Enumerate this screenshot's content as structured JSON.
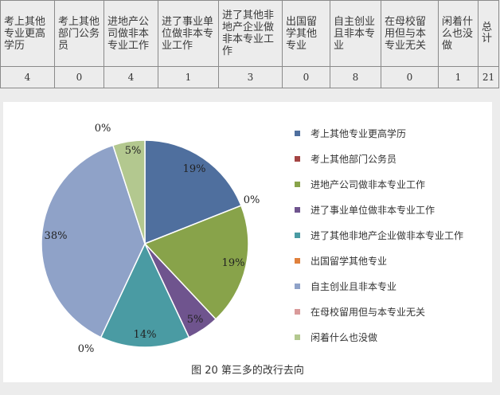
{
  "table": {
    "headers": [
      "考上其他专业更高学历",
      "考上其他部门公务员",
      "进地产公司做非本专业工作",
      "进了事业单位做非本专业工作",
      "进了其他非地产企业做非本专业工作",
      "出国留学其他专业",
      "自主创业且非本专业",
      "在母校留用但与本专业无关",
      "闲着什么也没做",
      "总计"
    ],
    "values": [
      "4",
      "0",
      "4",
      "1",
      "3",
      "0",
      "8",
      "0",
      "1",
      "21"
    ]
  },
  "chart_data": {
    "type": "pie",
    "title": "图 20  第三多的改行去向",
    "categories": [
      "考上其他专业更高学历",
      "考上其他部门公务员",
      "进地产公司做非本专业工作",
      "进了事业单位做非本专业工作",
      "进了其他非地产企业做非本专业工作",
      "出国留学其他专业",
      "自主创业且非本专业",
      "在母校留用但与本专业无关",
      "闲着什么也没做"
    ],
    "values": [
      19,
      0,
      19,
      5,
      14,
      0,
      38,
      0,
      5
    ],
    "labels": [
      "19%",
      "0%",
      "19%",
      "5%",
      "14%",
      "0%",
      "38%",
      "0%",
      "5%"
    ],
    "colors": [
      "#4f6f9e",
      "#a44443",
      "#88a34a",
      "#6f548e",
      "#4a9ba3",
      "#e0803c",
      "#8fa2c8",
      "#d99a9a",
      "#b3c88f"
    ],
    "legend_position": "right"
  }
}
